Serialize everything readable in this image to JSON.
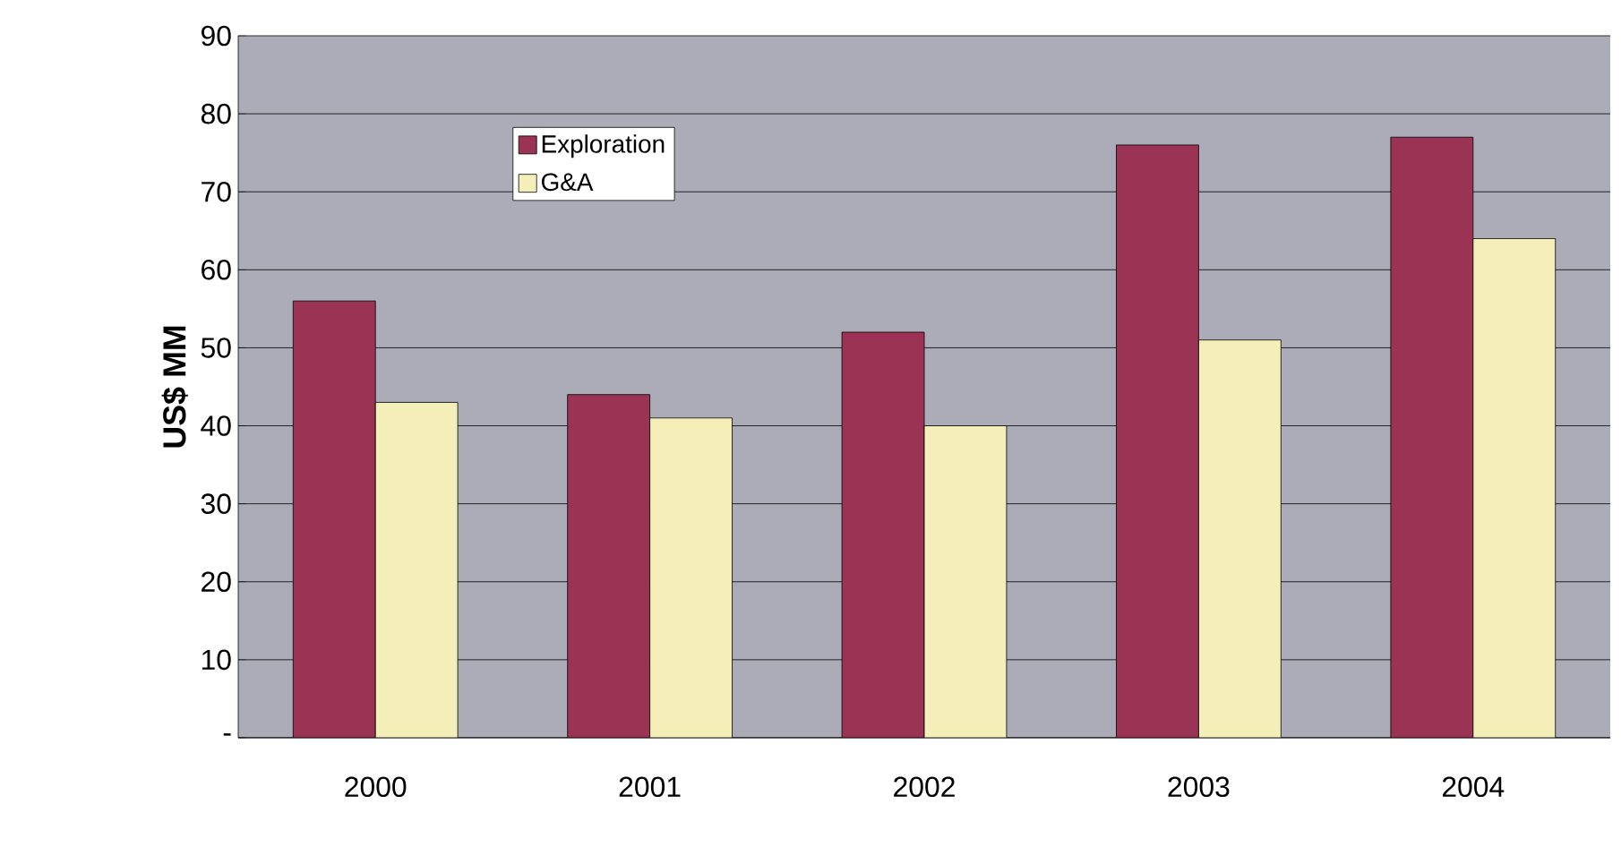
{
  "chart_data": {
    "type": "bar",
    "ylabel": "US$ MM",
    "categories": [
      "2000",
      "2001",
      "2002",
      "2003",
      "2004"
    ],
    "series": [
      {
        "name": "Exploration",
        "color": "#9b3355",
        "values": [
          56,
          44,
          52,
          76,
          77
        ]
      },
      {
        "name": "G&A",
        "color": "#f4efb8",
        "values": [
          43,
          41,
          40,
          51,
          64
        ]
      }
    ],
    "ylim": [
      0,
      90
    ],
    "yticks": [
      {
        "value": 0,
        "label": "-"
      },
      10,
      20,
      30,
      40,
      50,
      60,
      70,
      80,
      90
    ],
    "grid": "y",
    "legend": "top left"
  }
}
